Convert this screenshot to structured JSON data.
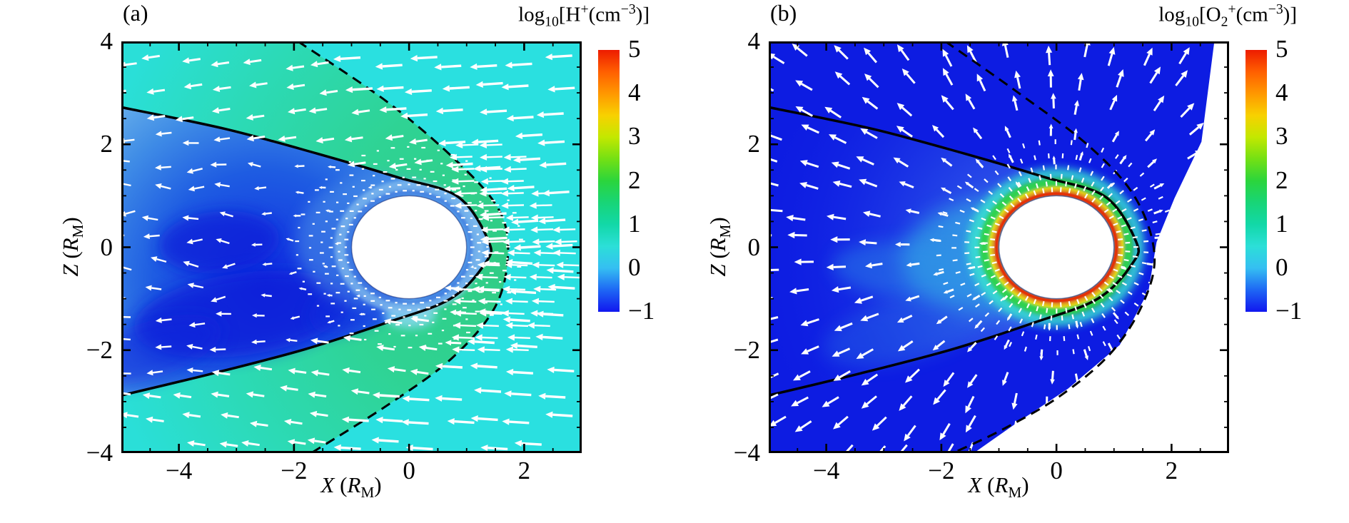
{
  "figure": {
    "background": "#ffffff",
    "kind": "two-panel simulation contour figure with velocity vectors"
  },
  "chart_data": [
    {
      "panel_id": "a",
      "type": "heatmap",
      "corner_label": "(a)",
      "quantity_plain": "log10[H+(cm-3)]",
      "colorbar_title_rich": [
        [
          "n",
          "log"
        ],
        [
          "sub",
          "10"
        ],
        [
          "n",
          "[H"
        ],
        [
          "sup",
          "+"
        ],
        [
          "n",
          "(cm"
        ],
        [
          "sup",
          "−3"
        ],
        [
          "n",
          ")]"
        ]
      ],
      "xlabel_plain": "X (RM)",
      "xlabel_rich": [
        [
          "i",
          "X"
        ],
        [
          "n",
          " ("
        ],
        [
          "i",
          "R"
        ],
        [
          "sub",
          "M"
        ],
        [
          "n",
          ")"
        ]
      ],
      "ylabel_plain": "Z (RM)",
      "ylabel_rich": [
        [
          "i",
          "Z"
        ],
        [
          "n",
          " ("
        ],
        [
          "i",
          "R"
        ],
        [
          "sub",
          "M"
        ],
        [
          "n",
          ")"
        ]
      ],
      "xlim": [
        -5,
        3
      ],
      "ylim": [
        -4,
        4
      ],
      "xticks": [
        {
          "v": -4,
          "t": "−4"
        },
        {
          "v": -2,
          "t": "−2"
        },
        {
          "v": 0,
          "t": "0"
        },
        {
          "v": 2,
          "t": "2"
        }
      ],
      "yticks": [
        {
          "v": 4,
          "t": "4"
        },
        {
          "v": 2,
          "t": "2"
        },
        {
          "v": 0,
          "t": "0"
        },
        {
          "v": -2,
          "t": "−2"
        },
        {
          "v": -4,
          "t": "−4"
        }
      ],
      "minor_tick_step": 0.5,
      "colorbar": {
        "min": -1,
        "max": 5,
        "ticks": [
          {
            "v": 5,
            "t": "5"
          },
          {
            "v": 4,
            "t": "4"
          },
          {
            "v": 3,
            "t": "3"
          },
          {
            "v": 2,
            "t": "2"
          },
          {
            "v": 1,
            "t": "1"
          },
          {
            "v": 0,
            "t": "0"
          },
          {
            "v": -1,
            "t": "−1"
          }
        ],
        "stops": [
          [
            5,
            "#ed1c00"
          ],
          [
            4.5,
            "#ff5f00"
          ],
          [
            4,
            "#ff9800"
          ],
          [
            3.5,
            "#f8d100"
          ],
          [
            3,
            "#c3e800"
          ],
          [
            2.5,
            "#73e014"
          ],
          [
            2,
            "#2bd53c"
          ],
          [
            1.5,
            "#18d577"
          ],
          [
            1,
            "#12d8a8"
          ],
          [
            0.5,
            "#2cdfd8"
          ],
          [
            0,
            "#35bff2"
          ],
          [
            -0.5,
            "#1e66f4"
          ],
          [
            -1,
            "#1117ef"
          ]
        ]
      },
      "planet": {
        "cx": 0,
        "cz": 0,
        "r": 1,
        "fill": "#ffffff"
      },
      "bg_color": "#2ae0e0",
      "curves": {
        "imb": {
          "name": "induced-magnetosphere-boundary",
          "style": "solid",
          "width": 3.5,
          "color": "#000000",
          "pts": [
            [
              -5,
              2.72
            ],
            [
              -3.2,
              2.3
            ],
            [
              -1.6,
              1.82
            ],
            [
              -0.2,
              1.36
            ],
            [
              0.85,
              0.98
            ],
            [
              1.38,
              0.12
            ],
            [
              1.33,
              -0.3
            ],
            [
              0.72,
              -1.0
            ],
            [
              -0.4,
              -1.47
            ],
            [
              -1.8,
              -1.98
            ],
            [
              -3.4,
              -2.45
            ],
            [
              -5,
              -2.88
            ]
          ]
        },
        "bow_shock": {
          "name": "bow-shock",
          "style": "dashed",
          "width": 3,
          "color": "#000000",
          "dash": "14 9",
          "pts": [
            [
              -1.93,
              4
            ],
            [
              -0.35,
              2.8
            ],
            [
              0.85,
              1.65
            ],
            [
              1.55,
              0.75
            ],
            [
              1.72,
              -0.1
            ],
            [
              1.5,
              -1.15
            ],
            [
              0.75,
              -2.15
            ],
            [
              -0.35,
              -3.05
            ],
            [
              -1.7,
              -4
            ]
          ]
        }
      },
      "regions": [
        {
          "name": "magnetosheath",
          "fill_kind": "radial",
          "center": [
            1.7,
            -0.1
          ],
          "radius": 7.2,
          "stops": [
            [
              0,
              "#30cc84"
            ],
            [
              0.4,
              "#2fd394"
            ],
            [
              0.72,
              "#2cdab6"
            ],
            [
              1,
              "#2adfd8"
            ]
          ],
          "curve": "bow_shock",
          "closure": [
            [
              -5,
              -4
            ],
            [
              -5,
              4
            ]
          ]
        },
        {
          "name": "wake",
          "fill_kind": "radial",
          "center": [
            -2.5,
            -0.7
          ],
          "radius": 3.9,
          "stops": [
            [
              0,
              "#0f2ce0"
            ],
            [
              0.5,
              "#1e5ce2"
            ],
            [
              0.8,
              "#3f8ce6"
            ],
            [
              1,
              "#60a9ea"
            ]
          ],
          "curve": "imb",
          "closure": []
        }
      ],
      "features": [
        {
          "cx": -3.3,
          "cz": 0.1,
          "rx": 1.05,
          "rz": 0.6,
          "rot": -5,
          "fill": "#0a1fd8",
          "o": 0.7,
          "blur": 10
        },
        {
          "cx": -2.9,
          "cz": -1.3,
          "rx": 1.9,
          "rz": 0.8,
          "rot": -8,
          "fill": "#0a1fd8",
          "o": 0.75,
          "blur": 12
        },
        {
          "cx": -4.5,
          "cz": -2.0,
          "rx": 1.3,
          "rz": 0.55,
          "rot": -18,
          "fill": "#0c24dc",
          "o": 0.55,
          "blur": 12
        },
        {
          "cx": -0.9,
          "cz": -1.05,
          "rx": 0.9,
          "rz": 0.5,
          "rot": -25,
          "fill": "#0e2ade",
          "o": 0.5,
          "blur": 10
        },
        {
          "cx": 0.02,
          "cz": -1.3,
          "rx": 0.45,
          "rz": 0.28,
          "rot": 0,
          "fill": "#86d8ee",
          "o": 0.85,
          "blur": 6
        },
        {
          "cx": -0.55,
          "cz": 0.1,
          "rx": 1.4,
          "rz": 1.3,
          "rot": 0,
          "fill": "#579de8",
          "o": 0.45,
          "blur": 10
        }
      ],
      "rings": [
        {
          "r": 1.17,
          "c": "#79b4ec",
          "w": 13,
          "o": 0.9,
          "blur": 4
        },
        {
          "r": 1.07,
          "c": "#3a6fdc",
          "w": 4,
          "o": 0.8,
          "blur": 2
        },
        {
          "r": 1.26,
          "c": "#a5d8f2",
          "w": 4,
          "o": 0.55,
          "blur": 3
        }
      ],
      "field": {
        "mode": "flow",
        "nose_cluster": true,
        "color": "#ffffff"
      },
      "spoke_rings": [
        1.1,
        1.22,
        1.36,
        1.52,
        1.72,
        1.95
      ],
      "white_regions": [],
      "layer_order": [
        "bg",
        "regions",
        "features",
        "rings",
        "planet",
        "curve_imb",
        "curve_bow",
        "arrows",
        "spokes"
      ],
      "approx_log10_density": {
        "solar_wind": 0.5,
        "magnetosheath_max": 2,
        "wake_min": -1,
        "dayside_ionosphere": 1
      }
    },
    {
      "panel_id": "b",
      "type": "heatmap",
      "corner_label": "(b)",
      "quantity_plain": "log10[O2+(cm-3)]",
      "colorbar_title_rich": [
        [
          "n",
          "log"
        ],
        [
          "sub",
          "10"
        ],
        [
          "n",
          "[O"
        ],
        [
          "sub",
          "2"
        ],
        [
          "sup",
          "+"
        ],
        [
          "n",
          "(cm"
        ],
        [
          "sup",
          "−3"
        ],
        [
          "n",
          ")]"
        ]
      ],
      "xlabel_plain": "X (RM)",
      "xlabel_rich": [
        [
          "i",
          "X"
        ],
        [
          "n",
          " ("
        ],
        [
          "i",
          "R"
        ],
        [
          "sub",
          "M"
        ],
        [
          "n",
          ")"
        ]
      ],
      "ylabel_plain": "Z (RM)",
      "ylabel_rich": [
        [
          "i",
          "Z"
        ],
        [
          "n",
          " ("
        ],
        [
          "i",
          "R"
        ],
        [
          "sub",
          "M"
        ],
        [
          "n",
          ")"
        ]
      ],
      "xlim": [
        -5,
        3
      ],
      "ylim": [
        -4,
        4
      ],
      "xticks": [
        {
          "v": -4,
          "t": "−4"
        },
        {
          "v": -2,
          "t": "−2"
        },
        {
          "v": 0,
          "t": "0"
        },
        {
          "v": 2,
          "t": "2"
        }
      ],
      "yticks": [
        {
          "v": 4,
          "t": "4"
        },
        {
          "v": 2,
          "t": "2"
        },
        {
          "v": 0,
          "t": "0"
        },
        {
          "v": -2,
          "t": "−2"
        },
        {
          "v": -4,
          "t": "−4"
        }
      ],
      "minor_tick_step": 0.5,
      "colorbar": {
        "min": -1,
        "max": 5,
        "ticks": [
          {
            "v": 5,
            "t": "5"
          },
          {
            "v": 4,
            "t": "4"
          },
          {
            "v": 3,
            "t": "3"
          },
          {
            "v": 2,
            "t": "2"
          },
          {
            "v": 1,
            "t": "1"
          },
          {
            "v": 0,
            "t": "0"
          },
          {
            "v": -1,
            "t": "−1"
          }
        ],
        "stops": [
          [
            5,
            "#ed1c00"
          ],
          [
            4.5,
            "#ff5f00"
          ],
          [
            4,
            "#ff9800"
          ],
          [
            3.5,
            "#f8d100"
          ],
          [
            3,
            "#c3e800"
          ],
          [
            2.5,
            "#73e014"
          ],
          [
            2,
            "#2bd53c"
          ],
          [
            1.5,
            "#18d577"
          ],
          [
            1,
            "#12d8a8"
          ],
          [
            0.5,
            "#2cdfd8"
          ],
          [
            0,
            "#35bff2"
          ],
          [
            -0.5,
            "#1e66f4"
          ],
          [
            -1,
            "#1117ef"
          ]
        ]
      },
      "planet": {
        "cx": 0,
        "cz": 0,
        "r": 1,
        "fill": "#ffffff"
      },
      "bg_color": "#0d1ce2",
      "curves": {
        "imb": {
          "name": "induced-magnetosphere-boundary",
          "style": "solid",
          "width": 3.5,
          "color": "#000000",
          "pts": [
            [
              -5,
              2.72
            ],
            [
              -3.2,
              2.3
            ],
            [
              -1.6,
              1.82
            ],
            [
              -0.2,
              1.36
            ],
            [
              0.85,
              0.98
            ],
            [
              1.38,
              0.12
            ],
            [
              1.33,
              -0.3
            ],
            [
              0.72,
              -1.0
            ],
            [
              -0.4,
              -1.47
            ],
            [
              -1.8,
              -1.98
            ],
            [
              -3.4,
              -2.45
            ],
            [
              -5,
              -2.88
            ]
          ]
        },
        "bow_shock": {
          "name": "bow-shock",
          "style": "dashed",
          "width": 3,
          "color": "#000000",
          "dash": "14 9",
          "pts": [
            [
              -1.93,
              4
            ],
            [
              -0.6,
              2.95
            ],
            [
              0.55,
              1.98
            ],
            [
              1.35,
              1.0
            ],
            [
              1.7,
              -0.1
            ],
            [
              1.52,
              -1.05
            ],
            [
              0.95,
              -2.05
            ],
            [
              0.05,
              -2.9
            ],
            [
              -0.95,
              -3.55
            ],
            [
              -1.8,
              -4
            ]
          ]
        }
      },
      "regions": [
        {
          "name": "wake-haze",
          "fill_kind": "radial",
          "center": [
            -0.3,
            -0.2
          ],
          "radius": 5,
          "stops": [
            [
              0,
              "rgba(110,180,246,0.6)"
            ],
            [
              0.45,
              "rgba(64,120,240,0.35)"
            ],
            [
              1,
              "rgba(20,40,230,0)"
            ]
          ],
          "curve": "imb",
          "closure": []
        }
      ],
      "features": [
        {
          "cx": -0.9,
          "cz": -0.15,
          "rx": 1.8,
          "rz": 1.15,
          "rot": -4,
          "fill": "#38cfe2",
          "o": 0.5,
          "blur": 14
        },
        {
          "cx": -0.15,
          "cz": -0.05,
          "rx": 1.35,
          "rz": 1.22,
          "rot": 0,
          "fill": "#40dfd8",
          "o": 0.75,
          "blur": 8
        },
        {
          "cx": -2.5,
          "cz": -0.45,
          "rx": 1.4,
          "rz": 0.55,
          "rot": 4,
          "fill": "#2f96e8",
          "o": 0.4,
          "blur": 12
        },
        {
          "cx": -2.6,
          "cz": -1.6,
          "rx": 1.5,
          "rz": 0.6,
          "rot": -14,
          "fill": "#2a7de6",
          "o": 0.3,
          "blur": 12
        }
      ],
      "rings": [
        {
          "r": 1.42,
          "c": "#39dcd2",
          "w": 17,
          "o": 0.95,
          "blur": 6
        },
        {
          "r": 1.26,
          "c": "#2fd24c",
          "w": 12,
          "o": 1,
          "blur": 3
        },
        {
          "r": 1.145,
          "c": "#f4e800",
          "w": 6,
          "o": 1,
          "blur": 2
        },
        {
          "r": 1.09,
          "c": "#ff8a00",
          "w": 5,
          "o": 1,
          "blur": 2
        },
        {
          "r": 1.04,
          "c": "#ea2a06",
          "w": 5,
          "o": 1,
          "blur": 1
        }
      ],
      "field": {
        "mode": "radial",
        "nose_cluster": false,
        "color": "#ffffff"
      },
      "spoke_rings": [
        1.12,
        1.24,
        1.38,
        1.56,
        1.78,
        2.05
      ],
      "white_regions": [
        {
          "name": "no-data-region",
          "pts": [
            [
              2.75,
              4.05
            ],
            [
              2.52,
              2.05
            ],
            [
              2.05,
              0.95
            ],
            [
              1.74,
              0.1
            ],
            [
              1.6,
              -0.85
            ],
            [
              1.1,
              -1.9
            ],
            [
              0.2,
              -2.75
            ],
            [
              -0.7,
              -3.42
            ],
            [
              -1.5,
              -4.05
            ],
            [
              3.1,
              -4.05
            ],
            [
              3.1,
              4.05
            ]
          ]
        }
      ],
      "layer_order": [
        "bg",
        "regions",
        "features",
        "rings",
        "planet",
        "curve_imb",
        "arrows",
        "spokes",
        "white",
        "curve_bow"
      ],
      "approx_log10_density": {
        "solar_wind": -1,
        "peak_near_surface": 5,
        "plume": 0,
        "tail": -0.5
      }
    }
  ]
}
